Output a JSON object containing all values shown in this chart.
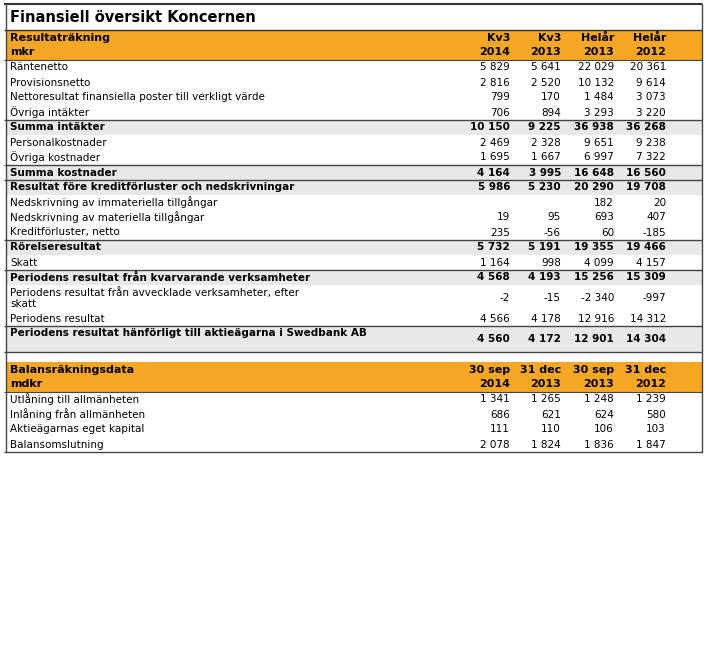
{
  "title": "Finansiell översikt Koncernen",
  "orange": "#F5A623",
  "light_gray": "#E8E8E8",
  "white": "#ffffff",
  "border_color": "#555555",
  "income_header": [
    "Resultaträkning",
    "mkr"
  ],
  "col_headers_inc": [
    [
      "Kv3",
      "2014"
    ],
    [
      "Kv3",
      "2013"
    ],
    [
      "Helår",
      "2013"
    ],
    [
      "Helår",
      "2012"
    ]
  ],
  "income_rows": [
    {
      "label": "Räntenetto",
      "vals": [
        "5 829",
        "5 641",
        "22 029",
        "20 361"
      ],
      "bold": false,
      "separator": false,
      "double_line": false
    },
    {
      "label": "Provisionsnetto",
      "vals": [
        "2 816",
        "2 520",
        "10 132",
        "9 614"
      ],
      "bold": false,
      "separator": false,
      "double_line": false
    },
    {
      "label": "Nettoresultat finansiella poster till verkligt värde",
      "vals": [
        "799",
        "170",
        "1 484",
        "3 073"
      ],
      "bold": false,
      "separator": false,
      "double_line": false
    },
    {
      "label": "Övriga intäkter",
      "vals": [
        "706",
        "894",
        "3 293",
        "3 220"
      ],
      "bold": false,
      "separator": false,
      "double_line": false
    },
    {
      "label": "Summa intäkter",
      "vals": [
        "10 150",
        "9 225",
        "36 938",
        "36 268"
      ],
      "bold": true,
      "separator": true,
      "double_line": false
    },
    {
      "label": "Personalkostnader",
      "vals": [
        "2 469",
        "2 328",
        "9 651",
        "9 238"
      ],
      "bold": false,
      "separator": false,
      "double_line": false
    },
    {
      "label": "Övriga kostnader",
      "vals": [
        "1 695",
        "1 667",
        "6 997",
        "7 322"
      ],
      "bold": false,
      "separator": false,
      "double_line": false
    },
    {
      "label": "Summa kostnader",
      "vals": [
        "4 164",
        "3 995",
        "16 648",
        "16 560"
      ],
      "bold": true,
      "separator": true,
      "double_line": false
    },
    {
      "label": "Resultat före kreditförluster och nedskrivningar",
      "vals": [
        "5 986",
        "5 230",
        "20 290",
        "19 708"
      ],
      "bold": true,
      "separator": true,
      "double_line": false
    },
    {
      "label": "Nedskrivning av immateriella tillgångar",
      "vals": [
        "",
        "",
        "182",
        "20"
      ],
      "bold": false,
      "separator": false,
      "double_line": false
    },
    {
      "label": "Nedskrivning av materiella tillgångar",
      "vals": [
        "19",
        "95",
        "693",
        "407"
      ],
      "bold": false,
      "separator": false,
      "double_line": false
    },
    {
      "label": "Kreditförluster, netto",
      "vals": [
        "235",
        "-56",
        "60",
        "-185"
      ],
      "bold": false,
      "separator": false,
      "double_line": false
    },
    {
      "label": "Rörelseresultat",
      "vals": [
        "5 732",
        "5 191",
        "19 355",
        "19 466"
      ],
      "bold": true,
      "separator": true,
      "double_line": false
    },
    {
      "label": "Skatt",
      "vals": [
        "1 164",
        "998",
        "4 099",
        "4 157"
      ],
      "bold": false,
      "separator": false,
      "double_line": false
    },
    {
      "label": "Periodens resultat från kvarvarande verksamheter",
      "vals": [
        "4 568",
        "4 193",
        "15 256",
        "15 309"
      ],
      "bold": true,
      "separator": true,
      "double_line": false
    },
    {
      "label": "Periodens resultat från avvecklade verksamheter, efter skatt",
      "vals": [
        "-2",
        "-15",
        "-2 340",
        "-997"
      ],
      "bold": false,
      "separator": false,
      "double_line": true
    },
    {
      "label": "Periodens resultat",
      "vals": [
        "4 566",
        "4 178",
        "12 916",
        "14 312"
      ],
      "bold": false,
      "separator": false,
      "double_line": false
    },
    {
      "label": "Periodens resultat hänförligt till aktieägarna i Swedbank AB",
      "vals": [
        "4 560",
        "4 172",
        "12 901",
        "14 304"
      ],
      "bold": true,
      "separator": true,
      "double_line": true
    }
  ],
  "balance_header": [
    "Balansräkningsdata",
    "mdkr"
  ],
  "col_headers_bal": [
    [
      "30 sep",
      "2014"
    ],
    [
      "31 dec",
      "2013"
    ],
    [
      "30 sep",
      "2013"
    ],
    [
      "31 dec",
      "2012"
    ]
  ],
  "balance_rows": [
    {
      "label": "Utlåning till allmänheten",
      "vals": [
        "1 341",
        "1 265",
        "1 248",
        "1 239"
      ],
      "bold": false
    },
    {
      "label": "Inlåning från allmänheten",
      "vals": [
        "686",
        "621",
        "624",
        "580"
      ],
      "bold": false
    },
    {
      "label": "Aktieägarnas eget kapital",
      "vals": [
        "111",
        "110",
        "106",
        "103"
      ],
      "bold": false
    },
    {
      "label": "Balansomslutning",
      "vals": [
        "2 078",
        "1 824",
        "1 836",
        "1 847"
      ],
      "bold": false
    }
  ]
}
